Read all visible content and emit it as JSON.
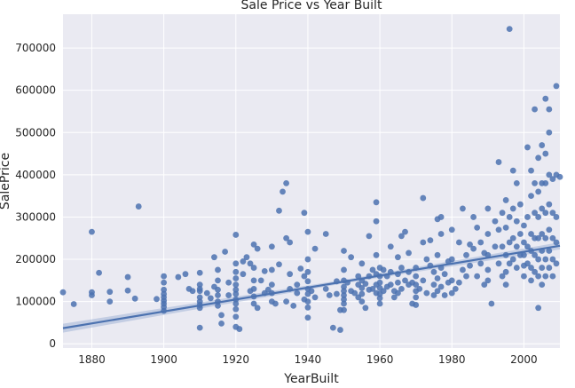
{
  "chart_data": {
    "type": "scatter",
    "title": "Sale Price vs Year Built",
    "xlabel": "YearBuilt",
    "ylabel": "SalePrice",
    "xlim": [
      1872,
      2010
    ],
    "ylim": [
      -10000,
      780000
    ],
    "grid": true,
    "style": "seaborn-darkgrid",
    "colors": {
      "background": "#eaeaf2",
      "grid": "#ffffff",
      "points": "#4c72b0",
      "regression_line": "#4c72b0",
      "confidence_band": "#a8b9d8"
    },
    "x_ticks": [
      {
        "value": 1880,
        "label": "1880"
      },
      {
        "value": 1900,
        "label": "1900"
      },
      {
        "value": 1920,
        "label": "1920"
      },
      {
        "value": 1940,
        "label": "1940"
      },
      {
        "value": 1960,
        "label": "1960"
      },
      {
        "value": 1980,
        "label": "1980"
      },
      {
        "value": 2000,
        "label": "2000"
      }
    ],
    "y_ticks": [
      {
        "value": 0,
        "label": "0"
      },
      {
        "value": 100000,
        "label": "100000"
      },
      {
        "value": 200000,
        "label": "200000"
      },
      {
        "value": 300000,
        "label": "300000"
      },
      {
        "value": 400000,
        "label": "400000"
      },
      {
        "value": 500000,
        "label": "500000"
      },
      {
        "value": 600000,
        "label": "600000"
      },
      {
        "value": 700000,
        "label": "700000"
      }
    ],
    "regression": {
      "x": [
        1872,
        2010
      ],
      "y": [
        37000,
        232000
      ]
    },
    "points": [
      [
        1872,
        122000
      ],
      [
        1875,
        94000
      ],
      [
        1880,
        265000
      ],
      [
        1880,
        122000
      ],
      [
        1880,
        115000
      ],
      [
        1882,
        168000
      ],
      [
        1885,
        123000
      ],
      [
        1885,
        100000
      ],
      [
        1890,
        158000
      ],
      [
        1890,
        126000
      ],
      [
        1892,
        107000
      ],
      [
        1893,
        325000
      ],
      [
        1898,
        106000
      ],
      [
        1900,
        160000
      ],
      [
        1900,
        145000
      ],
      [
        1900,
        128000
      ],
      [
        1900,
        118000
      ],
      [
        1900,
        110000
      ],
      [
        1900,
        102000
      ],
      [
        1900,
        95000
      ],
      [
        1900,
        87000
      ],
      [
        1900,
        78000
      ],
      [
        1904,
        158000
      ],
      [
        1906,
        165000
      ],
      [
        1907,
        130000
      ],
      [
        1908,
        125000
      ],
      [
        1910,
        168000
      ],
      [
        1910,
        140000
      ],
      [
        1910,
        130000
      ],
      [
        1910,
        125000
      ],
      [
        1910,
        110000
      ],
      [
        1910,
        100000
      ],
      [
        1910,
        92000
      ],
      [
        1910,
        85000
      ],
      [
        1910,
        38000
      ],
      [
        1912,
        120000
      ],
      [
        1913,
        108000
      ],
      [
        1914,
        205000
      ],
      [
        1914,
        135000
      ],
      [
        1915,
        175000
      ],
      [
        1915,
        150000
      ],
      [
        1915,
        128000
      ],
      [
        1915,
        115000
      ],
      [
        1915,
        100000
      ],
      [
        1915,
        90000
      ],
      [
        1916,
        68000
      ],
      [
        1916,
        48000
      ],
      [
        1917,
        218000
      ],
      [
        1918,
        145000
      ],
      [
        1918,
        115000
      ],
      [
        1920,
        258000
      ],
      [
        1920,
        190000
      ],
      [
        1920,
        170000
      ],
      [
        1920,
        155000
      ],
      [
        1920,
        140000
      ],
      [
        1920,
        128000
      ],
      [
        1920,
        118000
      ],
      [
        1920,
        105000
      ],
      [
        1920,
        95000
      ],
      [
        1920,
        82000
      ],
      [
        1920,
        64000
      ],
      [
        1920,
        40000
      ],
      [
        1921,
        35000
      ],
      [
        1922,
        195000
      ],
      [
        1922,
        165000
      ],
      [
        1923,
        205000
      ],
      [
        1924,
        190000
      ],
      [
        1924,
        125000
      ],
      [
        1925,
        235000
      ],
      [
        1925,
        180000
      ],
      [
        1925,
        150000
      ],
      [
        1925,
        130000
      ],
      [
        1925,
        112000
      ],
      [
        1925,
        95000
      ],
      [
        1926,
        225000
      ],
      [
        1926,
        85000
      ],
      [
        1927,
        150000
      ],
      [
        1928,
        172000
      ],
      [
        1928,
        120000
      ],
      [
        1929,
        128000
      ],
      [
        1930,
        230000
      ],
      [
        1930,
        175000
      ],
      [
        1930,
        140000
      ],
      [
        1930,
        120000
      ],
      [
        1930,
        100000
      ],
      [
        1931,
        95000
      ],
      [
        1932,
        315000
      ],
      [
        1932,
        188000
      ],
      [
        1933,
        360000
      ],
      [
        1934,
        380000
      ],
      [
        1934,
        250000
      ],
      [
        1934,
        100000
      ],
      [
        1935,
        240000
      ],
      [
        1935,
        165000
      ],
      [
        1935,
        130000
      ],
      [
        1936,
        90000
      ],
      [
        1937,
        140000
      ],
      [
        1937,
        120000
      ],
      [
        1938,
        178000
      ],
      [
        1939,
        310000
      ],
      [
        1939,
        160000
      ],
      [
        1939,
        105000
      ],
      [
        1940,
        265000
      ],
      [
        1940,
        200000
      ],
      [
        1940,
        170000
      ],
      [
        1940,
        148000
      ],
      [
        1940,
        130000
      ],
      [
        1940,
        118000
      ],
      [
        1940,
        100000
      ],
      [
        1940,
        86000
      ],
      [
        1940,
        62000
      ],
      [
        1941,
        125000
      ],
      [
        1942,
        225000
      ],
      [
        1942,
        110000
      ],
      [
        1945,
        260000
      ],
      [
        1945,
        130000
      ],
      [
        1946,
        115000
      ],
      [
        1947,
        38000
      ],
      [
        1948,
        148000
      ],
      [
        1948,
        118000
      ],
      [
        1949,
        80000
      ],
      [
        1949,
        33000
      ],
      [
        1950,
        220000
      ],
      [
        1950,
        175000
      ],
      [
        1950,
        150000
      ],
      [
        1950,
        135000
      ],
      [
        1950,
        125000
      ],
      [
        1950,
        115000
      ],
      [
        1950,
        105000
      ],
      [
        1950,
        95000
      ],
      [
        1950,
        80000
      ],
      [
        1951,
        145000
      ],
      [
        1952,
        205000
      ],
      [
        1952,
        125000
      ],
      [
        1953,
        120000
      ],
      [
        1954,
        160000
      ],
      [
        1954,
        140000
      ],
      [
        1954,
        110000
      ],
      [
        1955,
        190000
      ],
      [
        1955,
        150000
      ],
      [
        1955,
        132000
      ],
      [
        1955,
        118000
      ],
      [
        1955,
        100000
      ],
      [
        1956,
        142000
      ],
      [
        1956,
        85000
      ],
      [
        1957,
        255000
      ],
      [
        1957,
        160000
      ],
      [
        1957,
        128000
      ],
      [
        1958,
        175000
      ],
      [
        1958,
        130000
      ],
      [
        1959,
        335000
      ],
      [
        1959,
        290000
      ],
      [
        1959,
        210000
      ],
      [
        1959,
        165000
      ],
      [
        1959,
        140000
      ],
      [
        1959,
        120000
      ],
      [
        1960,
        180000
      ],
      [
        1960,
        160000
      ],
      [
        1960,
        145000
      ],
      [
        1960,
        132000
      ],
      [
        1960,
        118000
      ],
      [
        1960,
        108000
      ],
      [
        1960,
        95000
      ],
      [
        1961,
        175000
      ],
      [
        1961,
        125000
      ],
      [
        1962,
        160000
      ],
      [
        1962,
        135000
      ],
      [
        1963,
        230000
      ],
      [
        1963,
        170000
      ],
      [
        1963,
        140000
      ],
      [
        1964,
        125000
      ],
      [
        1964,
        110000
      ],
      [
        1965,
        205000
      ],
      [
        1965,
        165000
      ],
      [
        1965,
        145000
      ],
      [
        1965,
        120000
      ],
      [
        1966,
        255000
      ],
      [
        1966,
        180000
      ],
      [
        1966,
        130000
      ],
      [
        1967,
        265000
      ],
      [
        1967,
        150000
      ],
      [
        1968,
        215000
      ],
      [
        1968,
        170000
      ],
      [
        1968,
        140000
      ],
      [
        1969,
        145000
      ],
      [
        1969,
        95000
      ],
      [
        1970,
        180000
      ],
      [
        1970,
        160000
      ],
      [
        1970,
        140000
      ],
      [
        1970,
        125000
      ],
      [
        1970,
        110000
      ],
      [
        1970,
        92000
      ],
      [
        1971,
        130000
      ],
      [
        1972,
        345000
      ],
      [
        1972,
        240000
      ],
      [
        1972,
        150000
      ],
      [
        1973,
        200000
      ],
      [
        1973,
        120000
      ],
      [
        1974,
        245000
      ],
      [
        1974,
        185000
      ],
      [
        1975,
        170000
      ],
      [
        1975,
        140000
      ],
      [
        1975,
        115000
      ],
      [
        1976,
        295000
      ],
      [
        1976,
        210000
      ],
      [
        1976,
        155000
      ],
      [
        1976,
        125000
      ],
      [
        1977,
        300000
      ],
      [
        1977,
        260000
      ],
      [
        1977,
        180000
      ],
      [
        1977,
        135000
      ],
      [
        1978,
        165000
      ],
      [
        1978,
        115000
      ],
      [
        1979,
        195000
      ],
      [
        1979,
        145000
      ],
      [
        1980,
        270000
      ],
      [
        1980,
        200000
      ],
      [
        1980,
        150000
      ],
      [
        1980,
        120000
      ],
      [
        1981,
        130000
      ],
      [
        1982,
        240000
      ],
      [
        1982,
        145000
      ],
      [
        1983,
        320000
      ],
      [
        1983,
        175000
      ],
      [
        1984,
        210000
      ],
      [
        1984,
        160000
      ],
      [
        1985,
        235000
      ],
      [
        1985,
        185000
      ],
      [
        1986,
        300000
      ],
      [
        1986,
        225000
      ],
      [
        1987,
        275000
      ],
      [
        1987,
        160000
      ],
      [
        1988,
        240000
      ],
      [
        1988,
        190000
      ],
      [
        1989,
        215000
      ],
      [
        1989,
        140000
      ],
      [
        1990,
        320000
      ],
      [
        1990,
        260000
      ],
      [
        1990,
        210000
      ],
      [
        1990,
        175000
      ],
      [
        1990,
        150000
      ],
      [
        1991,
        95000
      ],
      [
        1992,
        290000
      ],
      [
        1992,
        230000
      ],
      [
        1993,
        430000
      ],
      [
        1993,
        270000
      ],
      [
        1993,
        190000
      ],
      [
        1994,
        310000
      ],
      [
        1994,
        230000
      ],
      [
        1994,
        160000
      ],
      [
        1995,
        340000
      ],
      [
        1995,
        275000
      ],
      [
        1995,
        210000
      ],
      [
        1995,
        170000
      ],
      [
        1995,
        140000
      ],
      [
        1996,
        745000
      ],
      [
        1996,
        300000
      ],
      [
        1996,
        240000
      ],
      [
        1996,
        190000
      ],
      [
        1997,
        410000
      ],
      [
        1997,
        320000
      ],
      [
        1997,
        250000
      ],
      [
        1997,
        200000
      ],
      [
        1998,
        380000
      ],
      [
        1998,
        290000
      ],
      [
        1998,
        230000
      ],
      [
        1998,
        180000
      ],
      [
        1999,
        330000
      ],
      [
        1999,
        260000
      ],
      [
        1999,
        210000
      ],
      [
        2000,
        280000
      ],
      [
        2000,
        240000
      ],
      [
        2000,
        210000
      ],
      [
        2000,
        185000
      ],
      [
        2000,
        160000
      ],
      [
        2001,
        465000
      ],
      [
        2001,
        300000
      ],
      [
        2001,
        230000
      ],
      [
        2001,
        190000
      ],
      [
        2002,
        410000
      ],
      [
        2002,
        350000
      ],
      [
        2002,
        260000
      ],
      [
        2002,
        220000
      ],
      [
        2002,
        180000
      ],
      [
        2002,
        150000
      ],
      [
        2003,
        555000
      ],
      [
        2003,
        380000
      ],
      [
        2003,
        310000
      ],
      [
        2003,
        250000
      ],
      [
        2003,
        210000
      ],
      [
        2003,
        170000
      ],
      [
        2004,
        440000
      ],
      [
        2004,
        360000
      ],
      [
        2004,
        300000
      ],
      [
        2004,
        250000
      ],
      [
        2004,
        200000
      ],
      [
        2004,
        160000
      ],
      [
        2004,
        85000
      ],
      [
        2005,
        470000
      ],
      [
        2005,
        380000
      ],
      [
        2005,
        320000
      ],
      [
        2005,
        260000
      ],
      [
        2005,
        220000
      ],
      [
        2005,
        180000
      ],
      [
        2005,
        140000
      ],
      [
        2006,
        580000
      ],
      [
        2006,
        450000
      ],
      [
        2006,
        380000
      ],
      [
        2006,
        310000
      ],
      [
        2006,
        250000
      ],
      [
        2006,
        200000
      ],
      [
        2006,
        160000
      ],
      [
        2007,
        555000
      ],
      [
        2007,
        500000
      ],
      [
        2007,
        400000
      ],
      [
        2007,
        330000
      ],
      [
        2007,
        270000
      ],
      [
        2007,
        220000
      ],
      [
        2007,
        180000
      ],
      [
        2008,
        390000
      ],
      [
        2008,
        310000
      ],
      [
        2008,
        250000
      ],
      [
        2008,
        200000
      ],
      [
        2008,
        160000
      ],
      [
        2009,
        610000
      ],
      [
        2009,
        400000
      ],
      [
        2009,
        300000
      ],
      [
        2009,
        240000
      ],
      [
        2009,
        190000
      ],
      [
        2010,
        395000
      ]
    ]
  }
}
